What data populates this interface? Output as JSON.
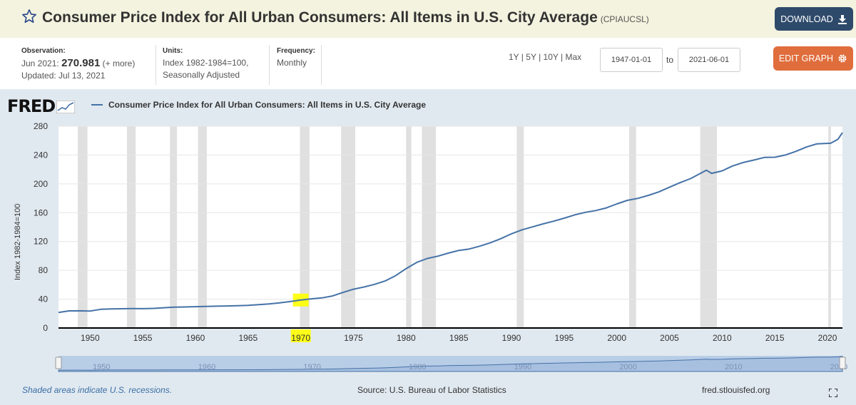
{
  "header": {
    "title": "Consumer Price Index for All Urban Consumers: All Items in U.S. City Average",
    "series_id": "(CPIAUCSL)",
    "download_label": "DOWNLOAD"
  },
  "info": {
    "observation_label": "Observation:",
    "observation_date": "Jun 2021:",
    "observation_value": "270.981",
    "more_link": "(+ more)",
    "updated": "Updated: Jul 13, 2021",
    "units_label": "Units:",
    "units_line1": "Index 1982-1984=100,",
    "units_line2": "Seasonally Adjusted",
    "frequency_label": "Frequency:",
    "frequency_value": "Monthly"
  },
  "controls": {
    "ranges": [
      "1Y",
      "5Y",
      "10Y",
      "Max"
    ],
    "start_date": "1947-01-01",
    "to_label": "to",
    "end_date": "2021-06-01",
    "edit_label": "EDIT GRAPH"
  },
  "graph": {
    "logo": "FRED",
    "legend": "Consumer Price Index for All Urban Consumers: All Items in U.S. City Average",
    "footer_note": "Shaded areas indicate U.S. recessions.",
    "source": "Source: U.S. Bureau of Labor Statistics",
    "site": "fred.stlouisfed.org"
  },
  "colors": {
    "line": "#4572a7",
    "recession": "#e0e0e0",
    "highlight": "#ffff00",
    "download_bg": "#2e4a6b",
    "edit_bg": "#e06d3c"
  },
  "chart_data": {
    "type": "line",
    "title": "Consumer Price Index for All Urban Consumers: All Items in U.S. City Average",
    "xlabel": "",
    "ylabel": "Index 1982-1984=100",
    "xlim": [
      1947.0,
      2021.42
    ],
    "ylim": [
      0,
      280
    ],
    "yticks": [
      0,
      40,
      80,
      120,
      160,
      200,
      240,
      280
    ],
    "xticks": [
      1950,
      1955,
      1960,
      1965,
      1970,
      1975,
      1980,
      1985,
      1990,
      1995,
      2000,
      2005,
      2010,
      2015,
      2020
    ],
    "navigator_ticks": [
      1950,
      1960,
      1970,
      1980,
      1990,
      2000,
      2010,
      2020
    ],
    "highlighted_x_tick": 1970,
    "series": [
      {
        "name": "CPIAUCSL",
        "x": [
          1947,
          1948,
          1949,
          1950,
          1951,
          1952,
          1953,
          1954,
          1955,
          1956,
          1957,
          1958,
          1959,
          1960,
          1961,
          1962,
          1963,
          1964,
          1965,
          1966,
          1967,
          1968,
          1969,
          1970,
          1971,
          1972,
          1973,
          1974,
          1975,
          1976,
          1977,
          1978,
          1979,
          1980,
          1981,
          1982,
          1983,
          1984,
          1985,
          1986,
          1987,
          1988,
          1989,
          1990,
          1991,
          1992,
          1993,
          1994,
          1995,
          1996,
          1997,
          1998,
          1999,
          2000,
          2001,
          2002,
          2003,
          2004,
          2005,
          2006,
          2007,
          2008.5,
          2009,
          2010,
          2011,
          2012,
          2013,
          2014,
          2015,
          2016,
          2017,
          2018,
          2019,
          2020.3,
          2021,
          2021.42
        ],
        "values": [
          21.5,
          23.7,
          23.8,
          23.5,
          25.9,
          26.5,
          26.7,
          26.9,
          26.8,
          27.2,
          28.1,
          28.9,
          29.2,
          29.6,
          29.9,
          30.3,
          30.6,
          31.0,
          31.5,
          32.4,
          33.4,
          34.8,
          36.7,
          38.8,
          40.5,
          41.8,
          44.4,
          49.3,
          53.8,
          56.9,
          60.6,
          65.2,
          72.6,
          82.4,
          90.9,
          96.5,
          99.6,
          103.9,
          107.6,
          109.6,
          113.6,
          118.3,
          124.0,
          130.7,
          136.2,
          140.3,
          144.5,
          148.2,
          152.4,
          156.9,
          160.5,
          163.0,
          166.6,
          172.2,
          177.1,
          179.9,
          184.0,
          188.9,
          195.3,
          201.6,
          207.3,
          219.0,
          214.6,
          218.1,
          224.9,
          229.6,
          233.0,
          236.7,
          237.0,
          240.0,
          245.1,
          251.1,
          255.6,
          256.4,
          262.0,
          271.0
        ]
      }
    ],
    "recessions": [
      [
        1948.83,
        1949.75
      ],
      [
        1953.5,
        1954.33
      ],
      [
        1957.58,
        1958.25
      ],
      [
        1960.25,
        1961.08
      ],
      [
        1969.92,
        1970.83
      ],
      [
        1973.83,
        1975.17
      ],
      [
        1980.0,
        1980.5
      ],
      [
        1981.5,
        1982.83
      ],
      [
        1990.5,
        1991.17
      ],
      [
        2001.17,
        2001.83
      ],
      [
        2007.92,
        2009.5
      ],
      [
        2020.08,
        2020.33
      ]
    ]
  }
}
